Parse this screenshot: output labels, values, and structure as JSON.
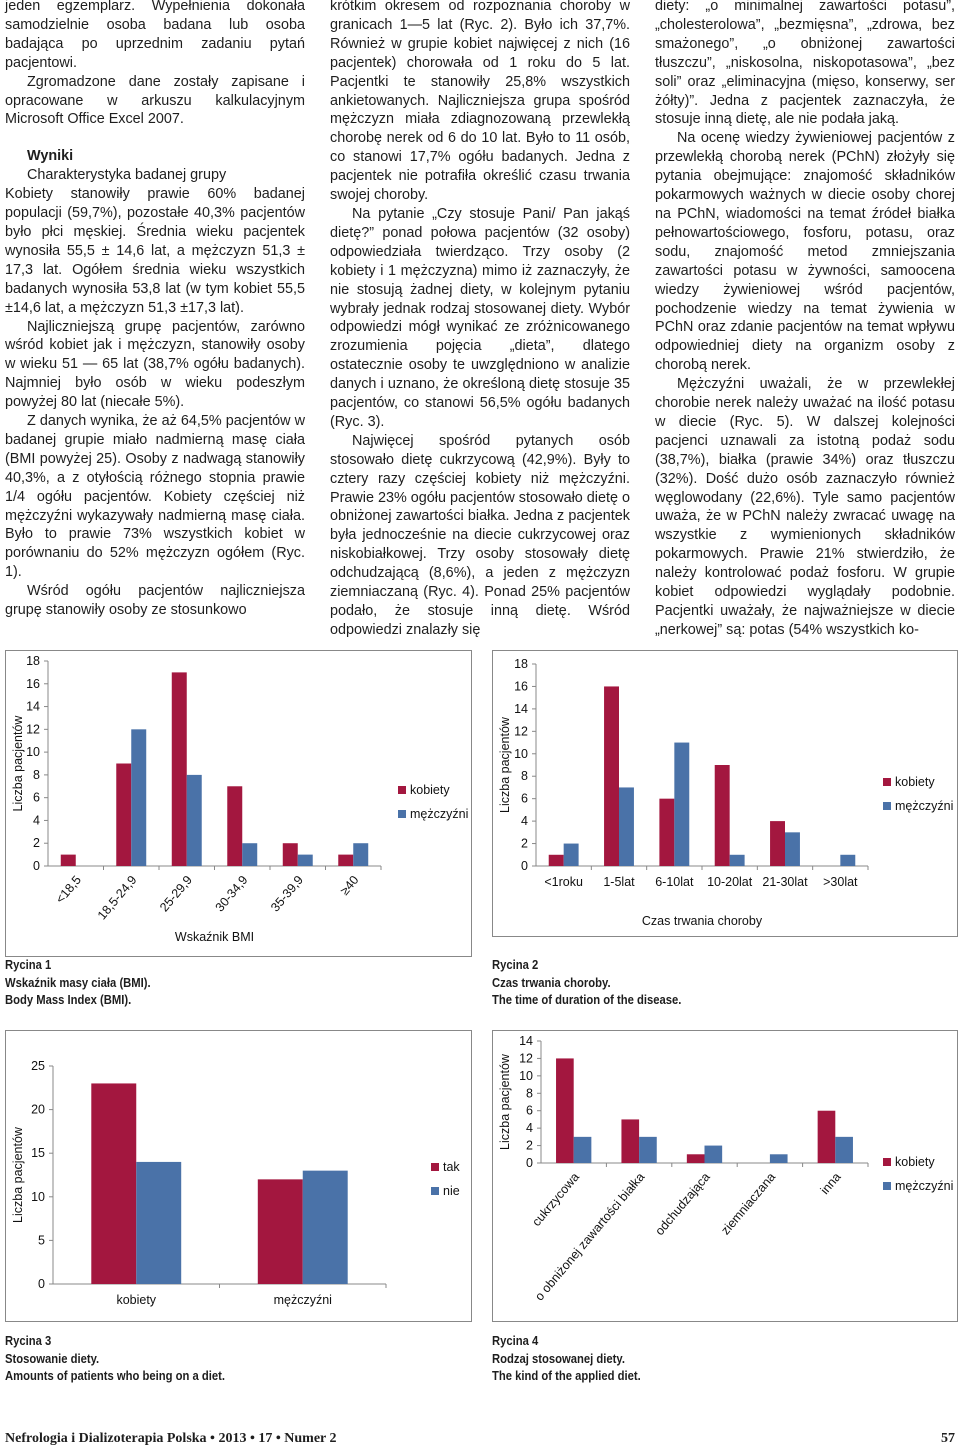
{
  "columns": [
    [
      "jeden egzemplarz. Wypełnienia dokonała samodzielnie osoba badana lub osoba badająca po uprzednim zadaniu pytań pacjentowi.",
      "Zgromadzone dane zostały zapisane i opracowane w arkuszu kalkulacyjnym Microsoft Office Excel 2007.",
      "Wyniki",
      "Charakterystyka badanej grupy",
      "Kobiety stanowiły prawie 60% badanej populacji (59,7%), pozostałe 40,3% pacjentów było płci męskiej. Średnia wieku pacjentek wynosiła 55,5 ± 14,6 lat, a mężczyzn 51,3 ± 17,3 lat. Ogółem średnia wieku wszystkich badanych wynosiła 53,8 lat (w tym kobiet 55,5 ±14,6 lat, a mężczyzn 51,3 ±17,3 lat).",
      "Najliczniejszą grupę pacjentów, zarówno wśród kobiet jak i mężczyzn, stanowiły osoby w wieku 51 — 65 lat (38,7% ogółu badanych). Najmniej było osób w wieku podeszłym powyżej 80 lat (niecałe 5%).",
      "Z danych wynika, że aż 64,5% pacjentów w badanej grupie miało nadmierną masę ciała (BMI powyżej 25). Osoby z nadwagą stanowiły 40,3%, a z otyłością różnego stopnia prawie 1/4 ogółu pacjentów. Kobiety częściej niż mężczyźni wykazywały nadmierną masę ciała. Było to prawie 73% wszystkich kobiet w porównaniu do 52% mężczyzn ogółem (Ryc. 1).",
      "Wśród ogółu pacjentów najliczniejsza grupę stanowiły osoby ze stosunkowo"
    ],
    [
      "krótkim okresem od rozpoznania choroby w granicach 1—5 lat (Ryc. 2). Było ich 37,7%. Również w grupie kobiet najwięcej z nich (16 pacjentek) chorowała od 1 roku do 5 lat. Pacjentki te stanowiły 25,8% wszystkich ankietowanych. Najliczniejsza grupa spośród mężczyzn miała zdiagnozowaną przewlekłą chorobę nerek od 6 do 10 lat. Było to 11 osób, co stanowi 17,7% ogółu badanych. Jedna z pacjentek nie potrafiła określić czasu trwania swojej choroby.",
      "Na pytanie „Czy stosuje Pani/ Pan jakąś dietę?” ponad połowa pacjentów (32 osoby) odpowiedziała twierdząco. Trzy osoby (2 kobiety i 1 mężczyzna) mimo iż zaznaczyły, że nie stosują żadnej diety, w kolejnym pytaniu wybrały jednak rodzaj stosowanej diety. Wybór odpowiedzi mógł wynikać ze zróżnicowanego zrozumienia pojęcia „dieta”, dlatego ostatecznie osoby te uwzględniono w analizie danych i uznano, że określoną dietę stosuje 35 pacjentów, co stanowi 56,5% ogółu badanych (Ryc. 3).",
      "Najwięcej spośród pytanych osób stosowało dietę cukrzycową (42,9%). Były to cztery razy częściej kobiety niż mężczyźni. Prawie 23% ogółu pacjentów stosowało dietę o obniżonej zawartości białka. Jedna z pacjentek była jednocześnie na diecie cukrzycowej oraz niskobiałkowej. Trzy osoby stosowały dietę odchudzającą (8,6%), a jeden z mężczyzn ziemniaczaną (Ryc. 4). Ponad 25% pacjentów podało, że stosuje inną dietę. Wśród odpowiedzi znalazły się"
    ],
    [
      "diety: „o minimalnej zawartości potasu”, „cholesterolowa”, „bezmięsna”, „zdrowa, bez smażonego”, „o obniżonej zawartości tłuszczu”, „niskosolna, niskopotasowa”, „bez soli” oraz „eliminacyjna (mięso, konserwy, ser żółty)”. Jedna z pacjentek zaznaczyła, że stosuje inną dietę, ale nie podała jaką.",
      "Na ocenę wiedzy żywieniowej pacjentów z przewlekłą chorobą nerek (PChN) złożyły się pytania obejmujące: znajomość składników pokarmowych ważnych w diecie osoby chorej na PChN, wiadomości na temat źródeł białka pełnowartościowego, fosforu, potasu, oraz sodu, znajomość metod zmniejszania zawartości potasu w żywności, samoocena wiedzy żywieniowej wśród pacjentów, pochodzenie wiedzy na temat żywienia w PChN oraz zdanie pacjentów na temat wpływu odpowiedniej diety na organizm osoby z chorobą nerek.",
      "Mężczyźni uważali, że w przewlekłej chorobie nerek należy uważać na ilość potasu w diecie (Ryc. 5). W dalszej kolejności pacjenci uznawali za istotną podaż sodu (38,7%), białka (prawie 34%) oraz tłuszczu (32%). Dość dużo osób zaznaczyło również węglowodany (22,6%). Tyle samo pacjentów uważa, że w PChN należy zwracać uwagę na wszystkie z wymienionych składników pokarmowych. Prawie 21% stwierdziło, że należy kontrolować podaż fosforu. W grupie kobiet odpowiedzi wyglądały podobnie. Pacjentki uważały, że najważniejsze w diecie „nerkowej” są: potas (54% wszystkich ko-"
    ]
  ],
  "chart_data": [
    {
      "type": "bar",
      "ylabel": "Liczba pacjentów",
      "xlabel": "Wskaźnik BMI",
      "categories": [
        "<18,5",
        "18,5-24,9",
        "25-29,9",
        "30-34,9",
        "35-39,9",
        "≥40"
      ],
      "series": [
        {
          "name": "kobiety",
          "color": "#a3173f",
          "values": [
            1,
            9,
            17,
            7,
            2,
            1
          ]
        },
        {
          "name": "mężczyźni",
          "color": "#4a72a8",
          "values": [
            0,
            12,
            8,
            2,
            1,
            2
          ]
        }
      ],
      "ylim": [
        0,
        18
      ],
      "yticks": [
        0,
        2,
        4,
        6,
        8,
        10,
        12,
        14,
        16,
        18
      ]
    },
    {
      "type": "bar",
      "ylabel": "Liczba pacjentów",
      "xlabel": "Czas trwania choroby",
      "categories": [
        "<1roku",
        "1-5lat",
        "6-10lat",
        "10-20lat",
        "21-30lat",
        ">30lat"
      ],
      "series": [
        {
          "name": "kobiety",
          "color": "#a3173f",
          "values": [
            1,
            16,
            6,
            9,
            4,
            0
          ]
        },
        {
          "name": "mężczyźni",
          "color": "#4a72a8",
          "values": [
            2,
            7,
            11,
            1,
            3,
            1
          ]
        }
      ],
      "ylim": [
        0,
        18
      ],
      "yticks": [
        0,
        2,
        4,
        6,
        8,
        10,
        12,
        14,
        16,
        18
      ]
    },
    {
      "type": "bar",
      "ylabel": "Liczba pacjentów",
      "categories": [
        "kobiety",
        "mężczyźni"
      ],
      "series": [
        {
          "name": "tak",
          "color": "#a3173f",
          "values": [
            23,
            12
          ]
        },
        {
          "name": "nie",
          "color": "#4a72a8",
          "values": [
            14,
            13
          ]
        }
      ],
      "ylim": [
        0,
        25
      ],
      "yticks": [
        0,
        5,
        10,
        15,
        20,
        25
      ]
    },
    {
      "type": "bar",
      "ylabel": "Liczba pacjentów",
      "categories": [
        "cukrzycowa",
        "o obniżonej zawartości białka",
        "odchudzająca",
        "ziemniaczana",
        "inna"
      ],
      "series": [
        {
          "name": "kobiety",
          "color": "#a3173f",
          "values": [
            12,
            5,
            1,
            0,
            6
          ]
        },
        {
          "name": "mężczyźni",
          "color": "#4a72a8",
          "values": [
            3,
            3,
            2,
            1,
            3
          ]
        }
      ],
      "ylim": [
        0,
        14
      ],
      "yticks": [
        0,
        2,
        4,
        6,
        8,
        10,
        12,
        14
      ]
    }
  ],
  "captions": [
    [
      "Rycina 1",
      "Wskaźnik masy ciała (BMI).",
      "Body Mass Index (BMI)."
    ],
    [
      "Rycina 2",
      "Czas trwania choroby.",
      "The time of duration of the disease."
    ],
    [
      "Rycina 3",
      "Stosowanie diety.",
      "Amounts of patients who being on a diet."
    ],
    [
      "Rycina 4",
      "Rodzaj stosowanej diety.",
      "The kind of the applied diet."
    ]
  ],
  "footer": {
    "journal": "Nefrologia i Dializoterapia Polska • 2013 • 17 • Numer 2",
    "page": "57"
  }
}
